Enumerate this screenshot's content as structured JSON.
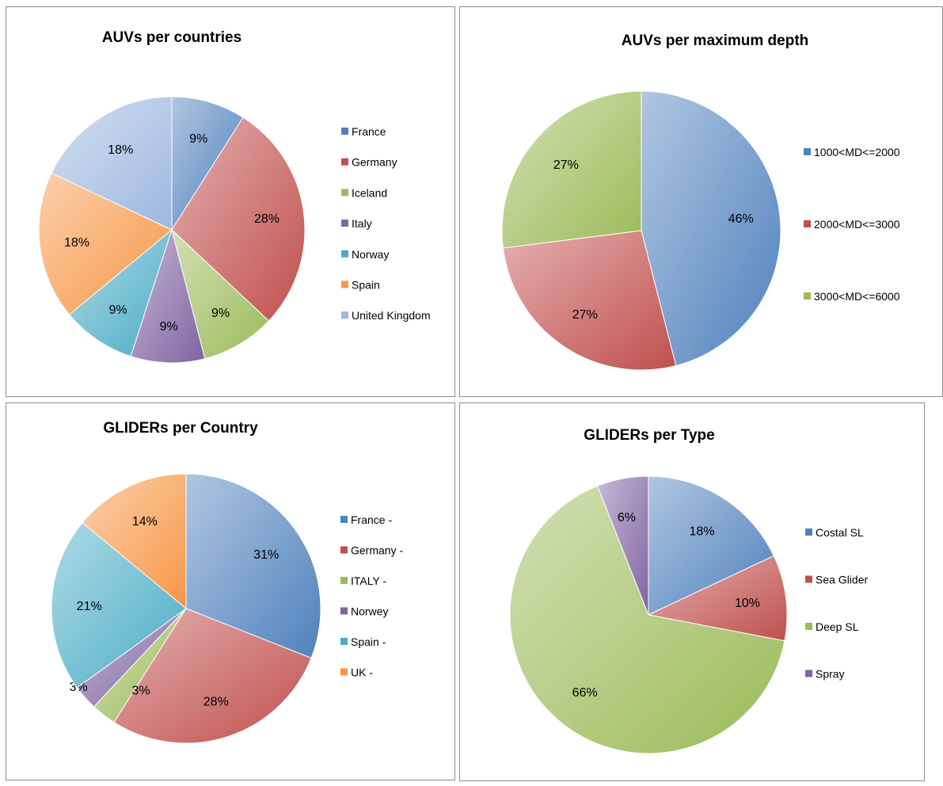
{
  "chart_data": [
    {
      "type": "pie",
      "title": "AUVs per countries",
      "categories": [
        "France",
        "Germany",
        "Iceland",
        "Italy",
        "Norway",
        "Spain",
        "United Kingdom"
      ],
      "values": [
        9,
        28,
        9,
        9,
        9,
        18,
        18
      ],
      "data_labels": [
        "9%",
        "28%",
        "9%",
        "9%",
        "9%",
        "18%",
        "18%"
      ],
      "colors": [
        "#4f81bd",
        "#c0504d",
        "#9bbb59",
        "#8064a2",
        "#4bacc6",
        "#f79646",
        "#9db7e0"
      ],
      "legend": "right"
    },
    {
      "type": "pie",
      "title": "AUVs per maximum depth",
      "categories": [
        "1000<MD<=2000",
        "2000<MD<=3000",
        "3000<MD<=6000"
      ],
      "values": [
        46,
        27,
        27
      ],
      "data_labels": [
        "46%",
        "27%",
        "27%"
      ],
      "colors": [
        "#4f81bd",
        "#c0504d",
        "#9bbb59"
      ],
      "legend": "right"
    },
    {
      "type": "pie",
      "title": "GLIDERs per Country",
      "categories": [
        "France -",
        "Germany -",
        "ITALY -",
        "Norwey",
        "Spain -",
        "UK -"
      ],
      "values": [
        31,
        28,
        3,
        3,
        21,
        14
      ],
      "data_labels": [
        "31%",
        "28%",
        "3%",
        "3%",
        "21%",
        "14%"
      ],
      "colors": [
        "#4f81bd",
        "#c0504d",
        "#9bbb59",
        "#8064a2",
        "#4bacc6",
        "#f79646"
      ],
      "legend": "right"
    },
    {
      "type": "pie",
      "title": "GLIDERs per Type",
      "categories": [
        "Costal SL",
        "Sea  Glider",
        "Deep SL",
        "Spray"
      ],
      "values": [
        18,
        10,
        66,
        6
      ],
      "data_labels": [
        "18%",
        "10%",
        "66%",
        "6%"
      ],
      "colors": [
        "#4f81bd",
        "#c0504d",
        "#9bbb59",
        "#8064a2"
      ],
      "legend": "right"
    }
  ]
}
